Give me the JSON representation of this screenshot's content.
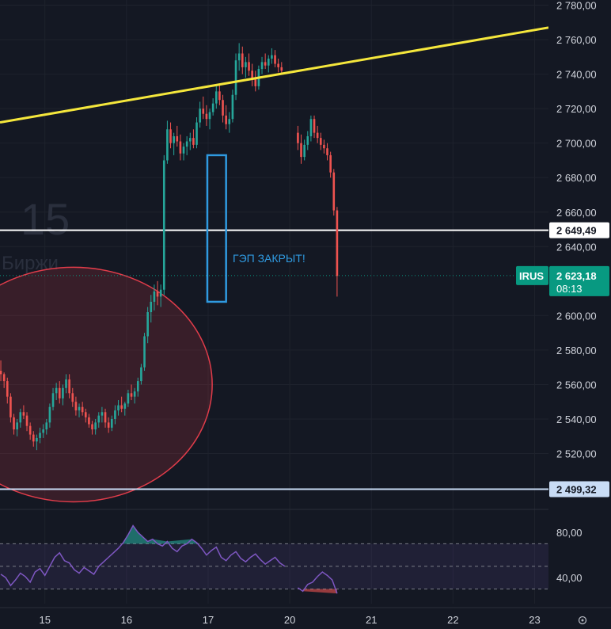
{
  "chart_data": {
    "type": "candlestick",
    "symbol": "IRUS",
    "watermark": {
      "interval": "15",
      "text": "Биржи"
    },
    "price_axis": {
      "ylim": [
        2489,
        2783
      ],
      "ticks": [
        "2 780,00",
        "2 760,00",
        "2 740,00",
        "2 720,00",
        "2 700,00",
        "2 680,00",
        "2 660,00",
        "2 640,00",
        "2 600,00",
        "2 580,00",
        "2 560,00",
        "2 540,00",
        "2 520,00"
      ],
      "tick_values": [
        2780,
        2760,
        2740,
        2720,
        2700,
        2680,
        2660,
        2640,
        2600,
        2580,
        2560,
        2540,
        2520
      ]
    },
    "x_axis": {
      "labels": [
        "15",
        "16",
        "17",
        "20",
        "21",
        "22",
        "23"
      ],
      "positions": [
        0.4,
        1.4,
        2.4,
        3.4,
        4.4,
        5.4,
        6.4
      ]
    },
    "xlim": [
      -0.15,
      6.57
    ],
    "levels": [
      {
        "name": "resistance",
        "value": 2649.49,
        "label": "2 649,49",
        "color": "#ffffff"
      },
      {
        "name": "support",
        "value": 2499.32,
        "label": "2 499,32",
        "color": "#c9dcf5"
      }
    ],
    "last_price": {
      "symbol": "IRUS",
      "value": "2 623,18",
      "price": 2623.18,
      "countdown": "08:13",
      "color": "#089981"
    },
    "trendline": {
      "color": "#f5e73c",
      "points": [
        [
          -0.15,
          2712
        ],
        [
          6.57,
          2767
        ]
      ]
    },
    "gap_box": {
      "color": "#2f9ae0",
      "x": [
        2.39,
        2.62
      ],
      "y": [
        2608,
        2693
      ],
      "label": "ГЭП ЗАКРЫТ!"
    },
    "ellipse": {
      "color": "#e03c4a",
      "center": [
        0.75,
        2560
      ],
      "radii": [
        1.7,
        68
      ]
    },
    "candles": [
      [
        -0.14,
        2568,
        2574,
        2562,
        2566
      ],
      [
        -0.1,
        2566,
        2567,
        2558,
        2562
      ],
      [
        -0.06,
        2562,
        2564,
        2549,
        2553
      ],
      [
        -0.02,
        2553,
        2555,
        2538,
        2541
      ],
      [
        0.02,
        2541,
        2543,
        2531,
        2534
      ],
      [
        0.06,
        2534,
        2540,
        2530,
        2538
      ],
      [
        0.1,
        2538,
        2546,
        2535,
        2544
      ],
      [
        0.14,
        2544,
        2548,
        2540,
        2542
      ],
      [
        0.18,
        2542,
        2544,
        2533,
        2536
      ],
      [
        0.22,
        2536,
        2538,
        2528,
        2531
      ],
      [
        0.26,
        2531,
        2533,
        2524,
        2527
      ],
      [
        0.3,
        2527,
        2531,
        2522,
        2529
      ],
      [
        0.34,
        2529,
        2535,
        2526,
        2532
      ],
      [
        0.38,
        2532,
        2537,
        2529,
        2534
      ],
      [
        0.42,
        2534,
        2540,
        2531,
        2538
      ],
      [
        0.46,
        2538,
        2549,
        2535,
        2547
      ],
      [
        0.5,
        2547,
        2558,
        2545,
        2555
      ],
      [
        0.54,
        2555,
        2561,
        2551,
        2558
      ],
      [
        0.58,
        2558,
        2562,
        2549,
        2552
      ],
      [
        0.62,
        2552,
        2560,
        2548,
        2558
      ],
      [
        0.66,
        2558,
        2566,
        2555,
        2563
      ],
      [
        0.7,
        2563,
        2566,
        2552,
        2555
      ],
      [
        0.74,
        2555,
        2558,
        2547,
        2550
      ],
      [
        0.78,
        2550,
        2553,
        2542,
        2545
      ],
      [
        0.82,
        2545,
        2549,
        2541,
        2547
      ],
      [
        0.86,
        2547,
        2550,
        2542,
        2544
      ],
      [
        0.9,
        2544,
        2546,
        2538,
        2541
      ],
      [
        0.94,
        2541,
        2543,
        2535,
        2537
      ],
      [
        0.98,
        2537,
        2539,
        2531,
        2534
      ],
      [
        1.02,
        2534,
        2540,
        2531,
        2538
      ],
      [
        1.06,
        2538,
        2544,
        2535,
        2542
      ],
      [
        1.1,
        2542,
        2547,
        2538,
        2544
      ],
      [
        1.14,
        2544,
        2546,
        2535,
        2538
      ],
      [
        1.18,
        2538,
        2541,
        2532,
        2535
      ],
      [
        1.22,
        2535,
        2542,
        2533,
        2540
      ],
      [
        1.26,
        2540,
        2548,
        2537,
        2545
      ],
      [
        1.3,
        2545,
        2551,
        2542,
        2548
      ],
      [
        1.34,
        2548,
        2553,
        2544,
        2546
      ],
      [
        1.38,
        2546,
        2550,
        2542,
        2549
      ],
      [
        1.42,
        2549,
        2557,
        2547,
        2555
      ],
      [
        1.46,
        2555,
        2560,
        2551,
        2553
      ],
      [
        1.5,
        2553,
        2558,
        2549,
        2556
      ],
      [
        1.54,
        2556,
        2564,
        2553,
        2562
      ],
      [
        1.58,
        2562,
        2572,
        2560,
        2570
      ],
      [
        1.62,
        2570,
        2590,
        2568,
        2588
      ],
      [
        1.66,
        2588,
        2605,
        2584,
        2602
      ],
      [
        1.7,
        2602,
        2612,
        2596,
        2608
      ],
      [
        1.74,
        2608,
        2618,
        2603,
        2614
      ],
      [
        1.78,
        2614,
        2620,
        2606,
        2611
      ],
      [
        1.82,
        2611,
        2618,
        2605,
        2615
      ],
      [
        1.86,
        2615,
        2693,
        2612,
        2690
      ],
      [
        1.9,
        2690,
        2713,
        2688,
        2708
      ],
      [
        1.94,
        2708,
        2712,
        2697,
        2700
      ],
      [
        1.98,
        2700,
        2706,
        2693,
        2704
      ],
      [
        2.02,
        2704,
        2710,
        2698,
        2701
      ],
      [
        2.06,
        2701,
        2705,
        2690,
        2694
      ],
      [
        2.1,
        2694,
        2700,
        2690,
        2698
      ],
      [
        2.14,
        2698,
        2704,
        2693,
        2701
      ],
      [
        2.18,
        2701,
        2706,
        2696,
        2703
      ],
      [
        2.22,
        2703,
        2708,
        2697,
        2699
      ],
      [
        2.26,
        2699,
        2715,
        2697,
        2712
      ],
      [
        2.3,
        2712,
        2724,
        2709,
        2720
      ],
      [
        2.34,
        2720,
        2727,
        2714,
        2717
      ],
      [
        2.38,
        2717,
        2722,
        2710,
        2714
      ],
      [
        2.42,
        2714,
        2720,
        2708,
        2718
      ],
      [
        2.46,
        2718,
        2726,
        2716,
        2723
      ],
      [
        2.5,
        2723,
        2733,
        2720,
        2730
      ],
      [
        2.54,
        2730,
        2734,
        2722,
        2725
      ],
      [
        2.58,
        2725,
        2728,
        2712,
        2716
      ],
      [
        2.62,
        2716,
        2722,
        2708,
        2711
      ],
      [
        2.66,
        2711,
        2718,
        2706,
        2714
      ],
      [
        2.7,
        2714,
        2731,
        2712,
        2728
      ],
      [
        2.74,
        2728,
        2752,
        2725,
        2748
      ],
      [
        2.78,
        2748,
        2758,
        2742,
        2752
      ],
      [
        2.82,
        2752,
        2756,
        2740,
        2744
      ],
      [
        2.86,
        2744,
        2750,
        2738,
        2747
      ],
      [
        2.9,
        2747,
        2752,
        2739,
        2742
      ],
      [
        2.94,
        2742,
        2746,
        2733,
        2737
      ],
      [
        2.98,
        2737,
        2742,
        2730,
        2733
      ],
      [
        3.02,
        2733,
        2745,
        2731,
        2743
      ],
      [
        3.06,
        2743,
        2750,
        2740,
        2747
      ],
      [
        3.1,
        2747,
        2752,
        2743,
        2745
      ],
      [
        3.14,
        2745,
        2751,
        2741,
        2749
      ],
      [
        3.18,
        2749,
        2755,
        2746,
        2751
      ],
      [
        3.22,
        2751,
        2754,
        2744,
        2746
      ],
      [
        3.26,
        2746,
        2749,
        2741,
        2744
      ],
      [
        3.3,
        2744,
        2747,
        2740,
        2742
      ],
      [
        3.5,
        2706,
        2710,
        2696,
        2700
      ],
      [
        3.54,
        2700,
        2705,
        2688,
        2692
      ],
      [
        3.58,
        2692,
        2702,
        2690,
        2699
      ],
      [
        3.62,
        2699,
        2707,
        2696,
        2704
      ],
      [
        3.66,
        2704,
        2716,
        2701,
        2714
      ],
      [
        3.7,
        2714,
        2716,
        2703,
        2706
      ],
      [
        3.74,
        2706,
        2710,
        2700,
        2703
      ],
      [
        3.78,
        2703,
        2706,
        2696,
        2699
      ],
      [
        3.82,
        2699,
        2702,
        2694,
        2697
      ],
      [
        3.86,
        2697,
        2700,
        2690,
        2693
      ],
      [
        3.9,
        2693,
        2695,
        2680,
        2683
      ],
      [
        3.94,
        2683,
        2685,
        2658,
        2661
      ],
      [
        3.98,
        2661,
        2663,
        2611,
        2623
      ]
    ]
  },
  "rsi": {
    "ylim": [
      17,
      99
    ],
    "band": [
      30,
      70
    ],
    "mid": 50,
    "ticks": [
      "80,00",
      "40,00"
    ],
    "tick_values": [
      80,
      40
    ],
    "line_color": "#7e57c2",
    "band_color": "#7e57c2",
    "overbought_color": "#26a69a",
    "oversold_color": "#ef5350",
    "x": [
      -0.14,
      -0.08,
      -0.02,
      0.04,
      0.1,
      0.16,
      0.22,
      0.28,
      0.34,
      0.4,
      0.46,
      0.52,
      0.58,
      0.64,
      0.7,
      0.76,
      0.82,
      0.88,
      0.94,
      1.0,
      1.06,
      1.12,
      1.18,
      1.24,
      1.3,
      1.36,
      1.42,
      1.48,
      1.54,
      1.6,
      1.66,
      1.72,
      1.78,
      1.84,
      1.9,
      1.96,
      2.02,
      2.08,
      2.14,
      2.2,
      2.26,
      2.32,
      2.38,
      2.44,
      2.5,
      2.56,
      2.62,
      2.68,
      2.74,
      2.8,
      2.86,
      2.92,
      2.98,
      3.04,
      3.1,
      3.16,
      3.22,
      3.28,
      3.34,
      3.5,
      3.56,
      3.62,
      3.68,
      3.74,
      3.8,
      3.86,
      3.92,
      3.98
    ],
    "values": [
      43,
      40,
      33,
      38,
      44,
      41,
      36,
      45,
      48,
      42,
      50,
      58,
      62,
      55,
      53,
      47,
      44,
      49,
      46,
      43,
      50,
      54,
      58,
      62,
      66,
      71,
      78,
      86,
      80,
      76,
      72,
      74,
      70,
      68,
      72,
      66,
      63,
      68,
      70,
      74,
      71,
      66,
      60,
      64,
      67,
      58,
      55,
      60,
      63,
      57,
      54,
      58,
      61,
      56,
      52,
      55,
      58,
      53,
      50,
      31,
      28,
      34,
      36,
      41,
      45,
      42,
      38,
      26
    ]
  }
}
